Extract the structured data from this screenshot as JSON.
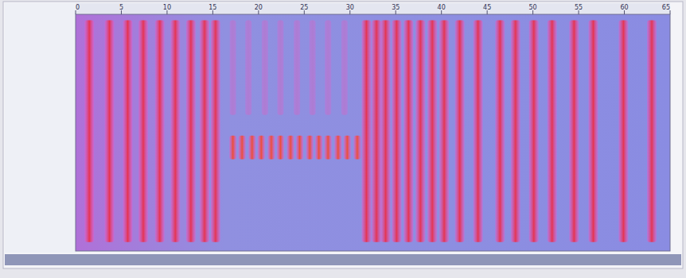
{
  "chart_data": {
    "type": "spectrogram",
    "xlim": [
      0,
      65
    ],
    "xticks": [
      0,
      5,
      10,
      15,
      20,
      25,
      30,
      35,
      40,
      45,
      50,
      55,
      60,
      65
    ],
    "ylim": [
      0,
      8
    ],
    "tick_labels": "x",
    "grid": false,
    "series": [
      {
        "color": "#e8304a",
        "x": [
          1.5,
          3.7,
          5.7,
          7.4,
          9.2,
          10.9,
          12.6,
          14.1,
          15.3,
          31.8,
          32.9,
          33.9,
          35.1,
          36.4,
          37.7,
          39.0,
          40.3,
          42.0,
          44.0,
          46.4,
          48.1,
          50.1,
          52.1,
          54.5,
          56.6,
          59.9,
          63.0
        ],
        "values": [
          7.8,
          7.8,
          7.8,
          7.8,
          7.8,
          7.8,
          7.8,
          7.8,
          7.8,
          7.8,
          7.8,
          7.8,
          7.8,
          7.8,
          7.8,
          7.8,
          7.8,
          7.8,
          7.8,
          7.8,
          7.8,
          7.8,
          7.8,
          7.8,
          7.8,
          7.8,
          7.8
        ],
        "base": [
          0.3,
          0.3,
          0.3,
          0.3,
          0.3,
          0.3,
          0.3,
          0.3,
          0.3,
          0.3,
          0.3,
          0.3,
          0.3,
          0.3,
          0.3,
          0.3,
          0.3,
          0.3,
          0.3,
          0.3,
          0.3,
          0.3,
          0.3,
          0.3,
          0.3,
          0.3,
          0.3
        ]
      },
      {
        "color": "#c070c8",
        "x": [
          17.2,
          18.9,
          20.7,
          22.4,
          24.2,
          25.9,
          27.6,
          29.4
        ],
        "values": [
          7.8,
          7.8,
          7.8,
          7.8,
          7.8,
          7.8,
          7.8,
          7.8
        ],
        "base": [
          4.6,
          4.6,
          4.6,
          4.6,
          4.6,
          4.6,
          4.6,
          4.6
        ]
      },
      {
        "color": "#f04a30",
        "x": [
          17.2,
          18.2,
          19.3,
          20.3,
          21.4,
          22.4,
          23.5,
          24.5,
          25.6,
          26.6,
          27.6,
          28.7,
          29.7,
          30.8
        ],
        "values": [
          3.9,
          3.9,
          3.9,
          3.9,
          3.9,
          3.9,
          3.9,
          3.9,
          3.9,
          3.9,
          3.9,
          3.9,
          3.9,
          3.9
        ],
        "base": [
          3.1,
          3.1,
          3.1,
          3.1,
          3.1,
          3.1,
          3.1,
          3.1,
          3.1,
          3.1,
          3.1,
          3.1,
          3.1,
          3.1
        ]
      }
    ]
  }
}
